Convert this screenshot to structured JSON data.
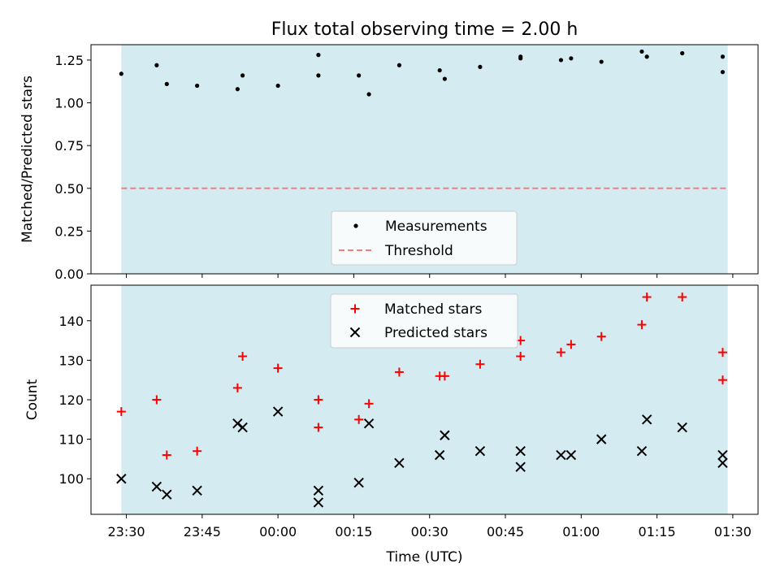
{
  "chart_data": [
    {
      "type": "scatter",
      "title": "Flux total observing time = 2.00 h",
      "xlabel": "",
      "ylabel": "Matched/Predicted stars",
      "ylim": [
        0.0,
        1.34
      ],
      "yticks": [
        0.0,
        0.25,
        0.5,
        0.75,
        1.0,
        1.25
      ],
      "ytick_labels": [
        "0.00",
        "0.25",
        "0.50",
        "0.75",
        "1.00",
        "1.25"
      ],
      "xlim_minutes": [
        -37,
        95
      ],
      "shaded_span_minutes": [
        -31,
        89
      ],
      "shade_color": "#d4ebf1",
      "threshold": 0.5,
      "threshold_color": "#f07f7f",
      "legend": {
        "position": "lower-center",
        "entries": [
          "Measurements",
          "Threshold"
        ]
      },
      "series": [
        {
          "name": "Measurements",
          "marker": "dot",
          "color": "#000000",
          "x_minutes": [
            -31,
            -24,
            -22,
            -16,
            -8,
            -7,
            0,
            8,
            8,
            16,
            18,
            24,
            32,
            33,
            40,
            48,
            48,
            56,
            58,
            64,
            72,
            73,
            80,
            88,
            88
          ],
          "y": [
            1.17,
            1.22,
            1.11,
            1.1,
            1.08,
            1.16,
            1.1,
            1.28,
            1.16,
            1.16,
            1.05,
            1.22,
            1.19,
            1.14,
            1.21,
            1.27,
            1.26,
            1.25,
            1.26,
            1.24,
            1.3,
            1.27,
            1.29,
            1.27,
            1.18
          ]
        }
      ]
    },
    {
      "type": "scatter",
      "title": "",
      "xlabel": "Time (UTC)",
      "ylabel": "Count",
      "ylim": [
        91,
        149
      ],
      "yticks": [
        100,
        110,
        120,
        130,
        140
      ],
      "ytick_labels": [
        "100",
        "110",
        "120",
        "130",
        "140"
      ],
      "xlim_minutes": [
        -37,
        95
      ],
      "xticks_minutes": [
        -30,
        -15,
        0,
        15,
        30,
        45,
        60,
        75,
        90
      ],
      "xtick_labels": [
        "23:30",
        "23:45",
        "00:00",
        "00:15",
        "00:30",
        "00:45",
        "01:00",
        "01:15",
        "01:30"
      ],
      "shaded_span_minutes": [
        -31,
        89
      ],
      "legend": {
        "position": "upper-center",
        "entries": [
          "Matched stars",
          "Predicted stars"
        ]
      },
      "series": [
        {
          "name": "Matched stars",
          "marker": "plus",
          "color": "#ff0000",
          "x_minutes": [
            -31,
            -24,
            -22,
            -16,
            -8,
            -7,
            0,
            8,
            8,
            16,
            18,
            24,
            32,
            33,
            40,
            48,
            48,
            56,
            58,
            64,
            72,
            73,
            80,
            88,
            88
          ],
          "y": [
            117,
            120,
            106,
            107,
            123,
            131,
            128,
            120,
            113,
            115,
            119,
            127,
            126,
            126,
            129,
            131,
            135,
            132,
            134,
            136,
            139,
            146,
            146,
            132,
            125
          ]
        },
        {
          "name": "Predicted stars",
          "marker": "x",
          "color": "#000000",
          "x_minutes": [
            -31,
            -24,
            -22,
            -16,
            -8,
            -7,
            0,
            8,
            8,
            16,
            18,
            24,
            32,
            33,
            40,
            48,
            48,
            56,
            58,
            64,
            72,
            73,
            80,
            88,
            88
          ],
          "y": [
            100,
            98,
            96,
            97,
            114,
            113,
            117,
            97,
            94,
            99,
            114,
            104,
            106,
            111,
            107,
            107,
            103,
            106,
            106,
            110,
            107,
            115,
            113,
            106,
            104
          ]
        }
      ]
    }
  ]
}
